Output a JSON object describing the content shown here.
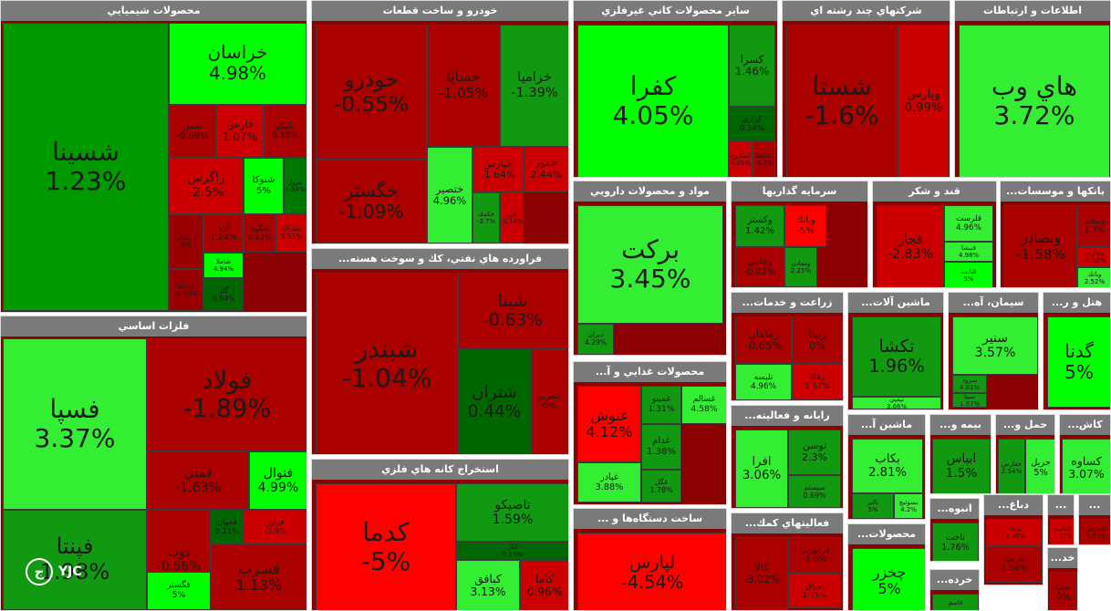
{
  "colors": {
    "up_strong": "#00ff00",
    "up_light": "#33ee33",
    "up_mid": "#119911",
    "up_dark": "#006600",
    "down_bright": "#ff0000",
    "down_mid": "#cc0000",
    "down_dark": "#aa0000",
    "header": "#7a7a7a"
  },
  "brand": {
    "logo_text": "YJC"
  },
  "chart_data": {
    "type": "treemap",
    "title": "",
    "sectors": [
      {
        "name": "محصولات شيميايي",
        "stocks": [
          {
            "name": "شسينا",
            "change": "1.23%",
            "color": "#009900"
          },
          {
            "name": "خراسان",
            "change": "4.98%",
            "color": "#00ff00"
          },
          {
            "name": "شفن",
            "change": "-0.08%",
            "color": "#aa0000"
          },
          {
            "name": "فارس",
            "change": "1.07%",
            "color": "#cc0000"
          },
          {
            "name": "تاپيكو",
            "change": "0.53%",
            "color": "#aa0000"
          },
          {
            "name": "زاگرس",
            "change": "-2.5%",
            "color": "#cc0000"
          },
          {
            "name": "شنوكا",
            "change": "5%",
            "color": "#00ff00"
          },
          {
            "name": "بترول",
            "change": "0.04%",
            "color": "#007700"
          },
          {
            "name": "پارسان",
            "change": "0%",
            "color": "#990000"
          },
          {
            "name": "آريا",
            "change": "1.24%",
            "color": "#aa0000"
          },
          {
            "name": "شگويا",
            "change": "0.62%",
            "color": "#aa0000"
          },
          {
            "name": "شاراك",
            "change": "3.51%",
            "color": "#cc0000"
          },
          {
            "name": "شاملا",
            "change": "4.94%",
            "color": "#00ff00"
          },
          {
            "name": "كرماشا",
            "change": "-0.54%",
            "color": "#990000"
          },
          {
            "name": "گلز",
            "change": "0.94%",
            "color": "#006600"
          }
        ]
      },
      {
        "name": "خودرو و ساخت قطعات",
        "stocks": [
          {
            "name": "خودرو",
            "change": "-0.55%",
            "color": "#aa0000"
          },
          {
            "name": "خساپا",
            "change": "-1.05%",
            "color": "#aa0000"
          },
          {
            "name": "خزاميا",
            "change": "-1.39%",
            "color": "#119911"
          },
          {
            "name": "خگستر",
            "change": "-1.09%",
            "color": "#aa0000"
          },
          {
            "name": "ختصير",
            "change": "4.96%",
            "color": "#33ee33"
          },
          {
            "name": "خپارس",
            "change": "-1.64%",
            "color": "#cc0000"
          },
          {
            "name": "خمور",
            "change": "2.44%",
            "color": "#cc0000"
          },
          {
            "name": "خكمك",
            "change": "-3.7%",
            "color": "#119911"
          },
          {
            "name": "خزر",
            "change": "-3.14%",
            "color": "#cc0000"
          }
        ]
      },
      {
        "name": "ساير محصولات كاني غيرفلزي",
        "stocks": [
          {
            "name": "كفرا",
            "change": "4.05%",
            "color": "#00ff00"
          },
          {
            "name": "كسرا",
            "change": "1.46%",
            "color": "#119911"
          },
          {
            "name": "كرازي",
            "change": "0.24%",
            "color": "#006600"
          },
          {
            "name": "كساروج",
            "change": "4.05%",
            "color": "#cc0000"
          },
          {
            "name": "كحافظ",
            "change": "-3.1%",
            "color": "#aa0000"
          }
        ]
      },
      {
        "name": "شركتهاي چند رشته اي",
        "stocks": [
          {
            "name": "شستا",
            "change": "-1.6%",
            "color": "#aa0000"
          },
          {
            "name": "وپارس",
            "change": "0.99%",
            "color": "#cc0000"
          }
        ]
      },
      {
        "name": "اطلاعات و ارتباطات",
        "stocks": [
          {
            "name": "هاي وب",
            "change": "3.72%",
            "color": "#33ee33"
          }
        ]
      },
      {
        "name": "فلزات اساسي",
        "stocks": [
          {
            "name": "فسپا",
            "change": "3.37%",
            "color": "#33ee33"
          },
          {
            "name": "فولاد",
            "change": "-1.89%",
            "color": "#aa0000"
          },
          {
            "name": "فملي",
            "change": "-1.63%",
            "color": "#aa0000"
          },
          {
            "name": "فنوال",
            "change": "4.99%",
            "color": "#00ff00"
          },
          {
            "name": "فپنتا",
            "change": "1.98%",
            "color": "#119911"
          },
          {
            "name": "ذوب",
            "change": "-0.56%",
            "color": "#aa0000"
          },
          {
            "name": "فگستر",
            "change": "5%",
            "color": "#00ff00"
          },
          {
            "name": "فجهان",
            "change": "0.11%",
            "color": "#006600"
          },
          {
            "name": "فرآور",
            "change": "-3.9%",
            "color": "#cc0000"
          },
          {
            "name": "فسرب",
            "change": "1.13%",
            "color": "#aa0000"
          }
        ]
      },
      {
        "name": "فراورده هاي نفتي، كك و سوخت هسته...",
        "stocks": [
          {
            "name": "شبندر",
            "change": "-1.04%",
            "color": "#aa0000"
          },
          {
            "name": "شپنا",
            "change": "-0.63%",
            "color": "#aa0000"
          },
          {
            "name": "شتران",
            "change": "0.44%",
            "color": "#006600"
          },
          {
            "name": "شبريز",
            "change": "0%",
            "color": "#aa0000"
          }
        ]
      },
      {
        "name": "استخراج كانه هاي فلزي",
        "stocks": [
          {
            "name": "كدما",
            "change": "-5%",
            "color": "#ff0000"
          },
          {
            "name": "تاصيكو",
            "change": "1.59%",
            "color": "#119911"
          },
          {
            "name": "كگل",
            "change": "0.13%",
            "color": "#006600"
          },
          {
            "name": "كبافق",
            "change": "3.13%",
            "color": "#33ee33"
          },
          {
            "name": "كاما",
            "change": "0.96%",
            "color": "#cc0000"
          }
        ]
      },
      {
        "name": "مواد و محصولات دارويي",
        "stocks": [
          {
            "name": "بركت",
            "change": "3.45%",
            "color": "#33ee33"
          },
          {
            "name": "ديران",
            "change": "4.29%",
            "color": "#119911"
          }
        ]
      },
      {
        "name": "سرمايه گذاريها",
        "stocks": [
          {
            "name": "وكستر",
            "change": "1.42%",
            "color": "#119911"
          },
          {
            "name": "وبانك",
            "change": "-5%",
            "color": "#ff0000"
          },
          {
            "name": "وجامي",
            "change": "-0.02%",
            "color": "#aa0000"
          },
          {
            "name": "ومعادن",
            "change": "2.25%",
            "color": "#119911"
          }
        ]
      },
      {
        "name": "قند و شكر",
        "stocks": [
          {
            "name": "قجار",
            "change": "-2.83%",
            "color": "#cc0000"
          },
          {
            "name": "قلرست",
            "change": "4.96%",
            "color": "#33ee33"
          },
          {
            "name": "قنيشا",
            "change": "4.98%",
            "color": "#33ee33"
          },
          {
            "name": "قثابت",
            "change": "5%",
            "color": "#00ff00"
          }
        ]
      },
      {
        "name": "بانكها و موسسات...",
        "stocks": [
          {
            "name": "وبصادر",
            "change": "-1.58%",
            "color": "#aa0000"
          },
          {
            "name": "وبملت",
            "change": "1.7%",
            "color": "#aa0000"
          },
          {
            "name": "وتجارت",
            "change": "-0.52%",
            "color": "#cc0000"
          },
          {
            "name": "وبانك",
            "change": "2.52%",
            "color": "#33ee33"
          }
        ]
      },
      {
        "name": "زراعت و خدمات...",
        "stocks": [
          {
            "name": "زماهان",
            "change": "-0.65%",
            "color": "#aa0000"
          },
          {
            "name": "زبينا",
            "change": "0%",
            "color": "#aa0000"
          },
          {
            "name": "تليسه",
            "change": "4.96%",
            "color": "#33ee33"
          },
          {
            "name": "زفكا",
            "change": "1.67%",
            "color": "#cc0000"
          }
        ]
      },
      {
        "name": "ماشين آلات...",
        "stocks": [
          {
            "name": "تكشا",
            "change": "1.96%",
            "color": "#119911"
          },
          {
            "name": "تپمپي",
            "change": "3.66%",
            "color": "#33ee33"
          }
        ]
      },
      {
        "name": "سيمان، آه...",
        "stocks": [
          {
            "name": "سنير",
            "change": "3.57%",
            "color": "#33ee33"
          },
          {
            "name": "سرود",
            "change": "4.01%",
            "color": "#119911"
          },
          {
            "name": "سيتا",
            "change": "1.37%",
            "color": "#119911"
          }
        ]
      },
      {
        "name": "هتل و ر...",
        "stocks": [
          {
            "name": "گدنا",
            "change": "5%",
            "color": "#00ff00"
          }
        ]
      },
      {
        "name": "محصولات غذايي و آ...",
        "stocks": [
          {
            "name": "غنوش",
            "change": "4.12%",
            "color": "#ff0000"
          },
          {
            "name": "غمينو",
            "change": "1.31%",
            "color": "#119911"
          },
          {
            "name": "غسالم",
            "change": "4.58%",
            "color": "#33ee33"
          },
          {
            "name": "غپادر",
            "change": "3.88%",
            "color": "#33ee33"
          },
          {
            "name": "غدام",
            "change": "1.38%",
            "color": "#119911"
          },
          {
            "name": "غگل",
            "change": "1.78%",
            "color": "#119911"
          }
        ]
      },
      {
        "name": "رايانه و فعاليته...",
        "stocks": [
          {
            "name": "افرا",
            "change": "3.06%",
            "color": "#33ee33"
          },
          {
            "name": "توسن",
            "change": "2.3%",
            "color": "#119911"
          },
          {
            "name": "سيستم",
            "change": "0.69%",
            "color": "#119911"
          }
        ]
      },
      {
        "name": "ماشين آ...",
        "stocks": [
          {
            "name": "بكاب",
            "change": "2.81%",
            "color": "#33ee33"
          },
          {
            "name": "بالبر",
            "change": "5%",
            "color": "#119911"
          },
          {
            "name": "بسوئيچ",
            "change": "4.2%",
            "color": "#33ee33"
          }
        ]
      },
      {
        "name": "بيمه و...",
        "stocks": [
          {
            "name": "ابپاس",
            "change": "1.5%",
            "color": "#119911"
          }
        ]
      },
      {
        "name": "حمل و...",
        "stocks": [
          {
            "name": "حفارس",
            "change": "2.54%",
            "color": "#119911"
          },
          {
            "name": "حريل",
            "change": "5%",
            "color": "#33ee33"
          }
        ]
      },
      {
        "name": "كاش...",
        "stocks": [
          {
            "name": "كساوه",
            "change": "3.07%",
            "color": "#33ee33"
          }
        ]
      },
      {
        "name": "ساخت دستگاه‌ها و ...",
        "stocks": [
          {
            "name": "لپارس",
            "change": "-4.54%",
            "color": "#ff0000"
          }
        ]
      },
      {
        "name": "فعاليتهاي كمك...",
        "stocks": [
          {
            "name": "كالا",
            "change": "-3.02%",
            "color": "#aa0000"
          },
          {
            "name": "فرابورس",
            "change": "-1.5%",
            "color": "#aa0000"
          },
          {
            "name": "اوراق",
            "change": "1.75%",
            "color": "#cc0000"
          }
        ]
      },
      {
        "name": "محصولات...",
        "stocks": [
          {
            "name": "چخزر",
            "change": "5%",
            "color": "#00ff00"
          }
        ]
      },
      {
        "name": "انبوه...",
        "stocks": [
          {
            "name": "ثاخت",
            "change": "1.76%",
            "color": "#119911"
          }
        ]
      },
      {
        "name": "دباغ...",
        "stocks": [
          {
            "name": "بهپاك",
            "change": "-1.95%",
            "color": "#cc0000"
          },
          {
            "name": "عرضه",
            "change": "1.54%",
            "color": "#aa0000"
          }
        ]
      },
      {
        "name": "...",
        "stocks": [
          {
            "name": "كماسه",
            "change": "3.37%",
            "color": "#cc0000"
          }
        ]
      },
      {
        "name": "...",
        "stocks": [
          {
            "name": "كفپارس",
            "change": "1.51%",
            "color": "#aa0000"
          }
        ]
      },
      {
        "name": "خرده...",
        "stocks": [
          {
            "name": "فاسم",
            "change": "",
            "color": "#119911"
          }
        ]
      },
      {
        "name": "خد...",
        "stocks": [
          {
            "name": "سپ",
            "change": "0%",
            "color": "#aa0000"
          }
        ]
      }
    ]
  }
}
